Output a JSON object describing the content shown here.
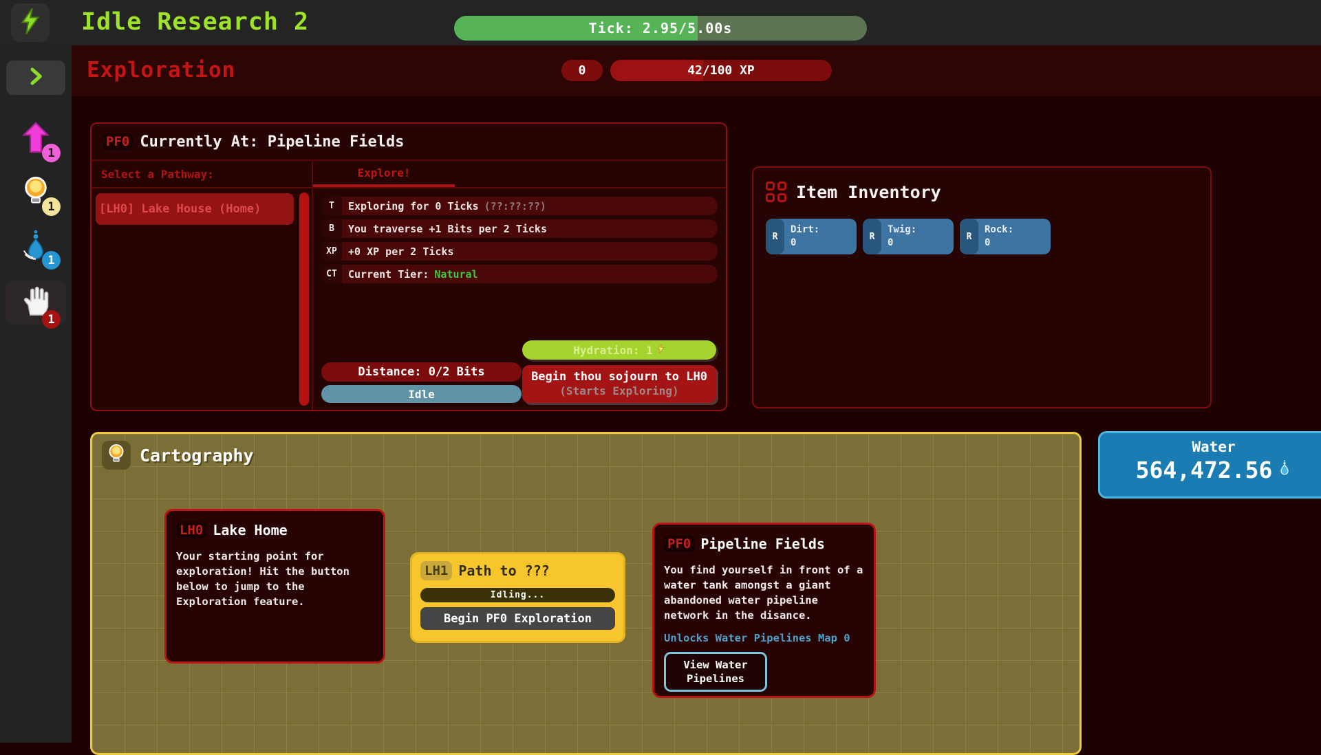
{
  "app": {
    "title": "Idle Research 2",
    "tick": {
      "label": "Tick: 2.95/5.00s",
      "progress_pct": 59
    }
  },
  "sidebar": {
    "badges": {
      "upgrade": "1",
      "ideas": "1",
      "water": "1",
      "manual": "1"
    }
  },
  "header": {
    "title": "Exploration",
    "level": "0",
    "xp": {
      "label": "42/100 XP",
      "pct": 42
    }
  },
  "location": {
    "code": "PF0",
    "title": "Currently At: Pipeline Fields",
    "pathways_header": "Select a Pathway:",
    "pathway_selected": "[LH0] Lake House (Home)",
    "tab": "Explore!",
    "stats": [
      {
        "tag": "T",
        "text": "Exploring for 0 Ticks",
        "muted": "(??:??:??)"
      },
      {
        "tag": "B",
        "text": "You traverse +1 Bits per 2 Ticks",
        "muted": ""
      },
      {
        "tag": "XP",
        "text": "+0 XP per 2 Ticks",
        "muted": ""
      },
      {
        "tag": "CT",
        "text": "Current Tier:",
        "value": "Natural"
      }
    ],
    "hydration": "Hydration: 1",
    "distance": "Distance: 0/2 Bits",
    "status": "Idle",
    "begin": {
      "line1": "Begin thou sojourn to LH0",
      "line2": "(Starts Exploring)"
    }
  },
  "inventory": {
    "title": "Item Inventory",
    "items": [
      {
        "rarity": "R",
        "name": "Dirt:",
        "count": "0"
      },
      {
        "rarity": "R",
        "name": "Twig:",
        "count": "0"
      },
      {
        "rarity": "R",
        "name": "Rock:",
        "count": "0"
      }
    ]
  },
  "cartography": {
    "title": "Cartography",
    "lh0": {
      "code": "LH0",
      "title": "Lake Home",
      "body": "Your starting point for exploration! Hit the button below to jump to the Exploration feature."
    },
    "lh1": {
      "code": "LH1",
      "title": "Path to ???",
      "status": "Idling...",
      "button": "Begin PF0 Exploration"
    },
    "pf0": {
      "code": "PF0",
      "title": "Pipeline Fields",
      "body": "You find yourself in front of a water tank amongst a giant abandoned water pipeline network in the disance.",
      "unlocks": "Unlocks Water Pipelines Map 0",
      "button": "View Water Pipelines"
    }
  },
  "water": {
    "label": "Water",
    "amount": "564,472.56"
  },
  "colors": {
    "accent_green": "#9fe22b",
    "accent_red": "#c41414",
    "tick_fill": "#56b457",
    "hydration_green": "#a6d42f",
    "water_blue": "#1a7cb2",
    "carto_yellow": "#eec93e"
  }
}
